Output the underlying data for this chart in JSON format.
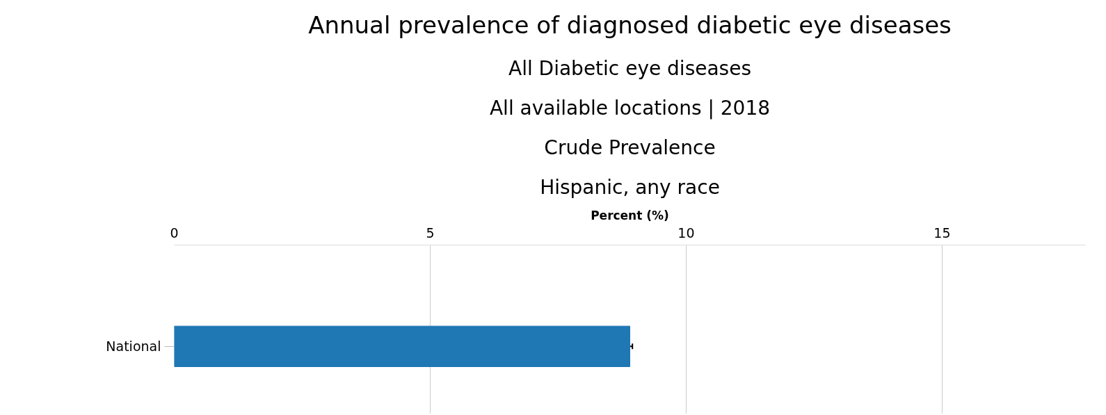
{
  "chart_data": {
    "type": "bar",
    "orientation": "horizontal",
    "title": "Annual prevalence of diagnosed diabetic eye diseases",
    "subtitle": [
      "All Diabetic eye diseases",
      "All available locations | 2018",
      "Crude Prevalence",
      "Hispanic, any race"
    ],
    "xlabel": "Percent (%)",
    "categories": [
      "National"
    ],
    "values": [
      8.9
    ],
    "errors": [
      0.05
    ],
    "color": "#1f77b4",
    "xlim": [
      0,
      17.8
    ],
    "xticks": [
      0,
      5,
      10,
      15
    ],
    "grid": "x"
  }
}
